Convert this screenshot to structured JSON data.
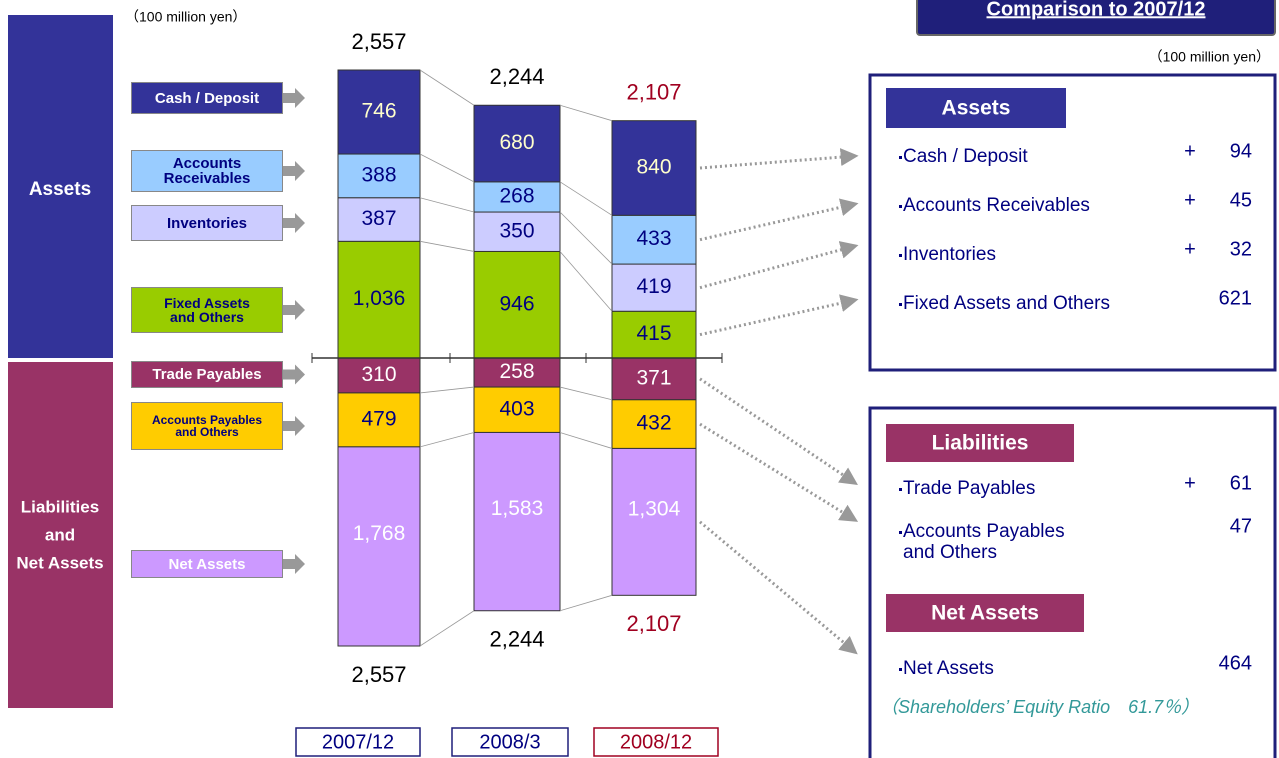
{
  "unit": "（100 million yen）",
  "comparison": {
    "title": "Comparison to 2007/12",
    "assets_heading": "Assets",
    "liabilities_heading": "Liabilities",
    "net_assets_heading": "Net Assets",
    "equity_ratio_text": "（Shareholders’ Equity Ratio　61.7％）"
  },
  "chart_data": {
    "type": "balance_sheet",
    "categories": [
      "2007/12",
      "2008/3",
      "2008/12"
    ],
    "totals": [
      2557,
      2244,
      2107
    ],
    "total_labels": [
      "2,557",
      "2,244",
      "2,107"
    ],
    "assets_label": "Assets",
    "liabilities_label_lines": [
      "Liabilities",
      "and",
      "Net Assets"
    ],
    "assets_series": [
      {
        "name": "Cash / Deposit",
        "color": "#333399",
        "values": [
          746,
          680,
          840
        ],
        "change_sign": "+",
        "change": 94
      },
      {
        "name": "Accounts Receivables",
        "color": "#99ccff",
        "values": [
          388,
          268,
          433
        ],
        "change_sign": "+",
        "change": 45
      },
      {
        "name": "Inventories",
        "color": "#ccccff",
        "values": [
          387,
          350,
          419
        ],
        "change_sign": "+",
        "change": 32
      },
      {
        "name": "Fixed Assets and Others",
        "color": "#99cc00",
        "values": [
          1036,
          946,
          415
        ],
        "value_labels": [
          "1,036",
          "946",
          "415"
        ],
        "change": 621
      }
    ],
    "liabilities_series": [
      {
        "name": "Trade Payables",
        "color": "#993366",
        "values": [
          310,
          258,
          371
        ],
        "change_sign": "+",
        "change": 61
      },
      {
        "name": "Accounts Payables and Others",
        "color": "#ffcc00",
        "values": [
          479,
          403,
          432
        ],
        "change": 47
      },
      {
        "name": "Net Assets",
        "color": "#cc99ff",
        "values": [
          1768,
          1583,
          1304
        ],
        "value_labels": [
          "1,768",
          "1,583",
          "1,304"
        ],
        "change": 464
      }
    ]
  }
}
